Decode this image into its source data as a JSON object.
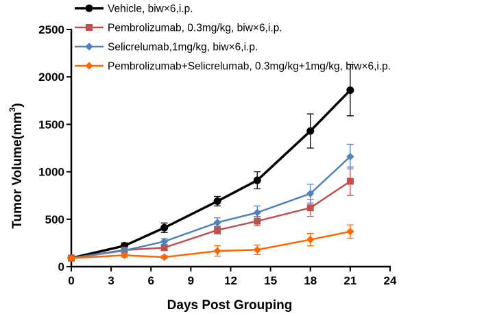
{
  "chart_data": {
    "type": "line",
    "xlabel": "Days Post Grouping",
    "ylabel_main": "Tumor Volume(mm",
    "ylabel_sup": "3",
    "ylabel_close": ")",
    "xlim": [
      0,
      24
    ],
    "ylim": [
      0,
      2500
    ],
    "xticks": [
      0,
      3,
      6,
      9,
      12,
      15,
      18,
      21,
      24
    ],
    "yticks": [
      0,
      500,
      1000,
      1500,
      2000,
      2500
    ],
    "legend_position": "top",
    "series": [
      {
        "name": "Vehicle, biw×6,i.p.",
        "color": "#000000",
        "marker": "circle",
        "x": [
          0,
          4,
          7,
          11,
          14,
          18,
          21
        ],
        "y": [
          90,
          220,
          410,
          690,
          910,
          1430,
          1860
        ],
        "err": [
          15,
          30,
          50,
          50,
          90,
          180,
          270
        ]
      },
      {
        "name": "Pembrolizumab, 0.3mg/kg, biw×6,i.p.",
        "color": "#c0504d",
        "marker": "square",
        "x": [
          0,
          4,
          7,
          11,
          14,
          18,
          21
        ],
        "y": [
          90,
          175,
          200,
          385,
          480,
          620,
          900
        ],
        "err": [
          15,
          20,
          25,
          40,
          50,
          90,
          150
        ]
      },
      {
        "name": "Selicrelumab,1mg/kg, biw×6,i.p.",
        "color": "#4f81bd",
        "marker": "diamond",
        "x": [
          0,
          4,
          7,
          11,
          14,
          18,
          21
        ],
        "y": [
          90,
          170,
          265,
          465,
          570,
          770,
          1160
        ],
        "err": [
          15,
          20,
          30,
          50,
          70,
          100,
          130
        ]
      },
      {
        "name": "Pembrolizumab+Selicrelumab, 0.3mg/kg+1mg/kg, biw×6,i.p.",
        "color": "#ff6600",
        "marker": "diamond",
        "x": [
          0,
          4,
          7,
          11,
          14,
          18,
          21
        ],
        "y": [
          90,
          120,
          100,
          165,
          178,
          285,
          370
        ],
        "err": [
          15,
          20,
          15,
          55,
          50,
          65,
          70
        ]
      }
    ]
  }
}
